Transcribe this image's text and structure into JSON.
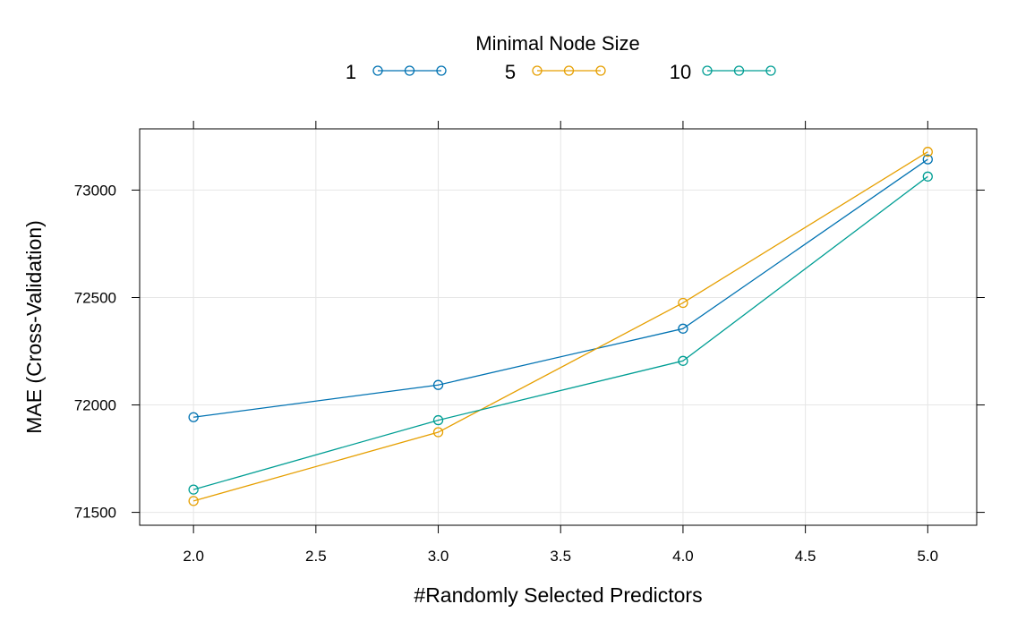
{
  "chart_data": {
    "type": "line",
    "title": "",
    "xlabel": "#Randomly Selected Predictors",
    "ylabel": "MAE (Cross-Validation)",
    "legend_title": "Minimal Node Size",
    "legend_position": "top",
    "grid": true,
    "xlim": [
      1.78,
      5.2
    ],
    "ylim": [
      71440,
      73285
    ],
    "x_ticks": [
      2.0,
      2.5,
      3.0,
      3.5,
      4.0,
      4.5,
      5.0
    ],
    "x_tick_labels": [
      "2.0",
      "2.5",
      "3.0",
      "3.5",
      "4.0",
      "4.5",
      "5.0"
    ],
    "y_ticks": [
      71500,
      72000,
      72500,
      73000
    ],
    "y_tick_labels": [
      "71500",
      "72000",
      "72500",
      "73000"
    ],
    "x": [
      2,
      3,
      4,
      5
    ],
    "series": [
      {
        "name": "1",
        "color": "#0072B2",
        "values": [
          71943,
          72093,
          72355,
          73143
        ]
      },
      {
        "name": "5",
        "color": "#E69F00",
        "values": [
          71553,
          71873,
          72475,
          73178
        ]
      },
      {
        "name": "10",
        "color": "#009E94",
        "values": [
          71606,
          71929,
          72205,
          73063
        ]
      }
    ]
  }
}
